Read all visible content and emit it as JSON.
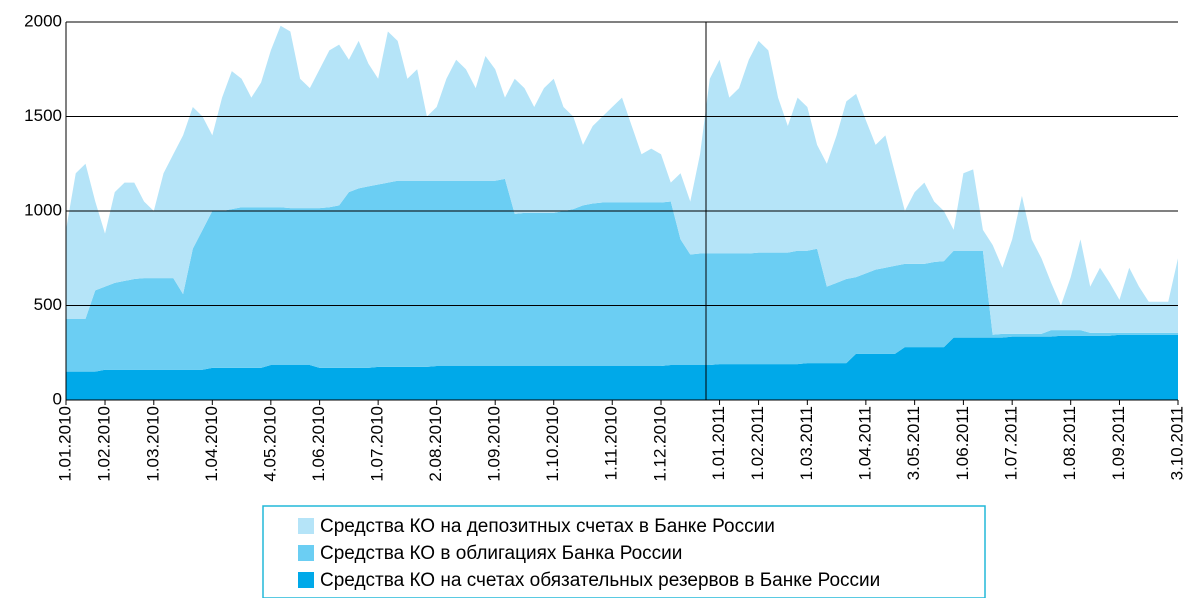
{
  "chart_data": {
    "type": "stacked_area",
    "categories": [
      "1.01.2010",
      null,
      null,
      null,
      "1.02.2010",
      null,
      null,
      null,
      null,
      "1.03.2010",
      null,
      null,
      null,
      null,
      null,
      "1.04.2010",
      null,
      null,
      null,
      null,
      null,
      "4.05.2010",
      null,
      null,
      null,
      null,
      "1.06.2010",
      null,
      null,
      null,
      null,
      null,
      "1.07.2010",
      null,
      null,
      null,
      null,
      null,
      "2.08.2010",
      null,
      null,
      null,
      null,
      null,
      "1.09.2010",
      null,
      null,
      null,
      null,
      null,
      "1.10.2010",
      null,
      null,
      null,
      null,
      null,
      "1.11.2010",
      null,
      null,
      null,
      null,
      "1.12.2010",
      null,
      null,
      null,
      null,
      null,
      "1.01.2011",
      null,
      null,
      null,
      "1.02.2011",
      null,
      null,
      null,
      null,
      "1.03.2011",
      null,
      null,
      null,
      null,
      null,
      "1.04.2011",
      null,
      null,
      null,
      null,
      "3.05.2011",
      null,
      null,
      null,
      null,
      "1.06.2011",
      null,
      null,
      null,
      null,
      "1.07.2011",
      null,
      null,
      null,
      null,
      null,
      "1.08.2011",
      null,
      null,
      null,
      null,
      "1.09.2011",
      null,
      null,
      null,
      null,
      null,
      "3.10.2011"
    ],
    "series": [
      {
        "name": "Средства КО на депозитных счетах в Банке России",
        "color": "#b5e4f8",
        "values": [
          470,
          770,
          820,
          470,
          280,
          480,
          520,
          510,
          405,
          355,
          555,
          655,
          840,
          750,
          600,
          400,
          600,
          730,
          680,
          580,
          660,
          830,
          960,
          935,
          685,
          635,
          735,
          830,
          850,
          700,
          780,
          650,
          560,
          800,
          740,
          540,
          590,
          340,
          390,
          540,
          640,
          590,
          490,
          660,
          590,
          430,
          715,
          660,
          560,
          660,
          710,
          550,
          490,
          320,
          410,
          455,
          505,
          555,
          405,
          255,
          285,
          255,
          100,
          350,
          280,
          525,
          925,
          1025,
          825,
          875,
          1025,
          1120,
          1070,
          820,
          670,
          810,
          760,
          550,
          650,
          780,
          940,
          970,
          810,
          660,
          700,
          490,
          280,
          380,
          430,
          320,
          265,
          110,
          410,
          430,
          110,
          475,
          350,
          500,
          730,
          500,
          400,
          250,
          130,
          280,
          480,
          245,
          345,
          265,
          175,
          345,
          245,
          165,
          165,
          165,
          395
        ]
      },
      {
        "name": "Средства КО в облигациях Банка России",
        "color": "#6bcef3",
        "values": [
          280,
          280,
          280,
          430,
          440,
          460,
          470,
          480,
          485,
          485,
          485,
          485,
          400,
          640,
          740,
          830,
          830,
          840,
          850,
          850,
          850,
          835,
          835,
          830,
          830,
          830,
          845,
          850,
          860,
          930,
          950,
          960,
          965,
          975,
          985,
          985,
          985,
          985,
          980,
          980,
          980,
          980,
          980,
          980,
          980,
          990,
          805,
          810,
          810,
          810,
          810,
          820,
          830,
          850,
          860,
          865,
          865,
          865,
          865,
          865,
          865,
          865,
          865,
          665,
          585,
          590,
          590,
          585,
          585,
          585,
          585,
          590,
          590,
          590,
          590,
          600,
          595,
          605,
          405,
          425,
          445,
          405,
          425,
          445,
          455,
          465,
          440,
          440,
          440,
          450,
          455,
          460,
          460,
          460,
          460,
          15,
          20,
          15,
          15,
          15,
          15,
          35,
          30,
          30,
          30,
          15,
          15,
          15,
          10,
          10,
          10,
          10,
          10,
          10,
          10
        ]
      },
      {
        "name": "Средства КО на счетах обязательных резервов в Банке России",
        "color": "#00a9e9",
        "values": [
          150,
          150,
          150,
          150,
          160,
          160,
          160,
          160,
          160,
          160,
          160,
          160,
          160,
          160,
          160,
          170,
          170,
          170,
          170,
          170,
          170,
          185,
          185,
          185,
          185,
          185,
          170,
          170,
          170,
          170,
          170,
          170,
          175,
          175,
          175,
          175,
          175,
          175,
          180,
          180,
          180,
          180,
          180,
          180,
          180,
          180,
          180,
          180,
          180,
          180,
          180,
          180,
          180,
          180,
          180,
          180,
          180,
          180,
          180,
          180,
          180,
          180,
          185,
          185,
          185,
          185,
          185,
          190,
          190,
          190,
          190,
          190,
          190,
          190,
          190,
          190,
          195,
          195,
          195,
          195,
          195,
          245,
          245,
          245,
          245,
          245,
          280,
          280,
          280,
          280,
          280,
          330,
          330,
          330,
          330,
          330,
          330,
          335,
          335,
          335,
          335,
          335,
          340,
          340,
          340,
          340,
          340,
          340,
          345,
          345,
          345,
          345,
          345,
          345,
          345
        ]
      }
    ],
    "ylim": [
      0,
      2000
    ],
    "yticks": [
      0,
      500,
      1000,
      1500,
      2000
    ],
    "grid": true
  }
}
